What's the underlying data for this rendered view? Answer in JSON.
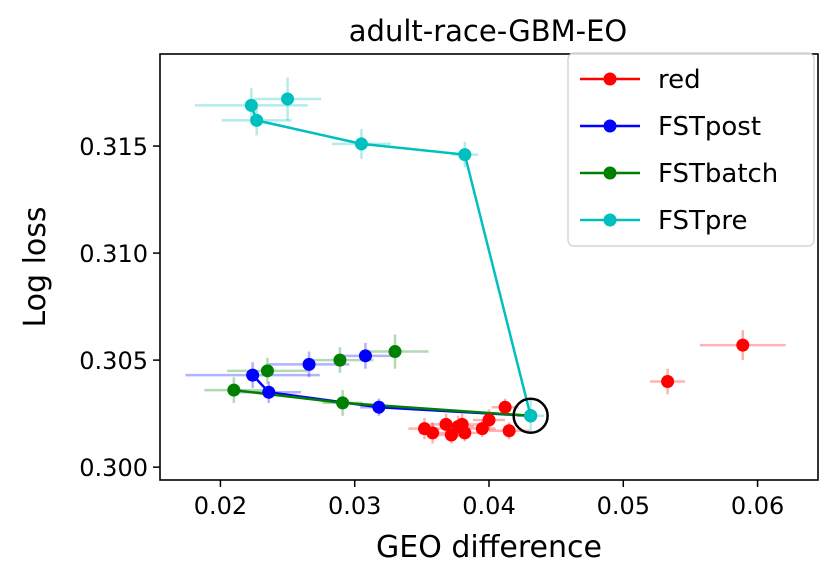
{
  "chart_data": {
    "type": "scatter",
    "title": "adult-race-GBM-EO",
    "xlabel": "GEO difference",
    "ylabel": "Log loss",
    "xlim": [
      0.0155,
      0.0645
    ],
    "ylim": [
      0.2994,
      0.3193
    ],
    "xticks": [
      0.02,
      0.03,
      0.04,
      0.05,
      0.06
    ],
    "xtick_labels": [
      "0.02",
      "0.03",
      "0.04",
      "0.05",
      "0.06"
    ],
    "yticks": [
      0.3,
      0.305,
      0.31,
      0.315
    ],
    "ytick_labels": [
      "0.300",
      "0.305",
      "0.310",
      "0.315"
    ],
    "legend_position": "top-right",
    "baseline_marker": {
      "x": 0.0431,
      "y": 0.3024,
      "description": "open black circle"
    },
    "series": [
      {
        "name": "red",
        "color": "#ff0000",
        "connected": false,
        "points": [
          {
            "x": 0.0589,
            "y": 0.3057,
            "xerr": 0.0032,
            "yerr": 0.0007
          },
          {
            "x": 0.0533,
            "y": 0.304,
            "xerr": 0.0013,
            "yerr": 0.0006
          },
          {
            "x": 0.0412,
            "y": 0.3028,
            "xerr": 0.001,
            "yerr": 0.0004
          },
          {
            "x": 0.04,
            "y": 0.3022,
            "xerr": 0.0012,
            "yerr": 0.0005
          },
          {
            "x": 0.0395,
            "y": 0.3018,
            "xerr": 0.001,
            "yerr": 0.0004
          },
          {
            "x": 0.0415,
            "y": 0.3017,
            "xerr": 0.0015,
            "yerr": 0.0004
          },
          {
            "x": 0.038,
            "y": 0.302,
            "xerr": 0.0012,
            "yerr": 0.0005
          },
          {
            "x": 0.0382,
            "y": 0.3016,
            "xerr": 0.001,
            "yerr": 0.0004
          },
          {
            "x": 0.0377,
            "y": 0.3019,
            "xerr": 0.0012,
            "yerr": 0.0005
          },
          {
            "x": 0.0372,
            "y": 0.3015,
            "xerr": 0.001,
            "yerr": 0.0004
          },
          {
            "x": 0.0368,
            "y": 0.302,
            "xerr": 0.0012,
            "yerr": 0.0005
          },
          {
            "x": 0.0358,
            "y": 0.3016,
            "xerr": 0.001,
            "yerr": 0.0005
          },
          {
            "x": 0.0352,
            "y": 0.3018,
            "xerr": 0.0012,
            "yerr": 0.0005
          }
        ]
      },
      {
        "name": "FSTpost",
        "color": "#0000ff",
        "connected": true,
        "points": [
          {
            "x": 0.0431,
            "y": 0.3024,
            "xerr": 0.0,
            "yerr": 0.0
          },
          {
            "x": 0.0318,
            "y": 0.3028,
            "xerr": 0.0014,
            "yerr": 0.0004
          },
          {
            "x": 0.0236,
            "y": 0.3035,
            "xerr": 0.0024,
            "yerr": 0.0005
          },
          {
            "x": 0.0224,
            "y": 0.3043,
            "xerr": 0.005,
            "yerr": 0.0006
          }
        ],
        "extra_points": [
          {
            "x": 0.0266,
            "y": 0.3048,
            "xerr": 0.003,
            "yerr": 0.0006
          },
          {
            "x": 0.0308,
            "y": 0.3052,
            "xerr": 0.002,
            "yerr": 0.0006
          }
        ]
      },
      {
        "name": "FSTbatch",
        "color": "#008000",
        "connected": true,
        "points": [
          {
            "x": 0.0431,
            "y": 0.3024,
            "xerr": 0.0,
            "yerr": 0.0
          },
          {
            "x": 0.0291,
            "y": 0.303,
            "xerr": 0.0015,
            "yerr": 0.0006
          },
          {
            "x": 0.021,
            "y": 0.3036,
            "xerr": 0.0022,
            "yerr": 0.0006
          }
        ],
        "extra_points": [
          {
            "x": 0.0235,
            "y": 0.3045,
            "xerr": 0.003,
            "yerr": 0.0006
          },
          {
            "x": 0.0289,
            "y": 0.305,
            "xerr": 0.0025,
            "yerr": 0.0006
          },
          {
            "x": 0.033,
            "y": 0.3054,
            "xerr": 0.0025,
            "yerr": 0.0008
          }
        ]
      },
      {
        "name": "FSTpre",
        "color": "#00bfbf",
        "connected": true,
        "points": [
          {
            "x": 0.0431,
            "y": 0.3024,
            "xerr": 0.001,
            "yerr": 0.0008
          },
          {
            "x": 0.0382,
            "y": 0.3146,
            "xerr": 0.001,
            "yerr": 0.0006
          },
          {
            "x": 0.0305,
            "y": 0.3151,
            "xerr": 0.0022,
            "yerr": 0.0007
          },
          {
            "x": 0.0227,
            "y": 0.3162,
            "xerr": 0.0026,
            "yerr": 0.0007
          },
          {
            "x": 0.0223,
            "y": 0.3169,
            "xerr": 0.0042,
            "yerr": 0.0008
          }
        ],
        "extra_points": [
          {
            "x": 0.025,
            "y": 0.3172,
            "xerr": 0.0025,
            "yerr": 0.001
          }
        ]
      }
    ]
  }
}
